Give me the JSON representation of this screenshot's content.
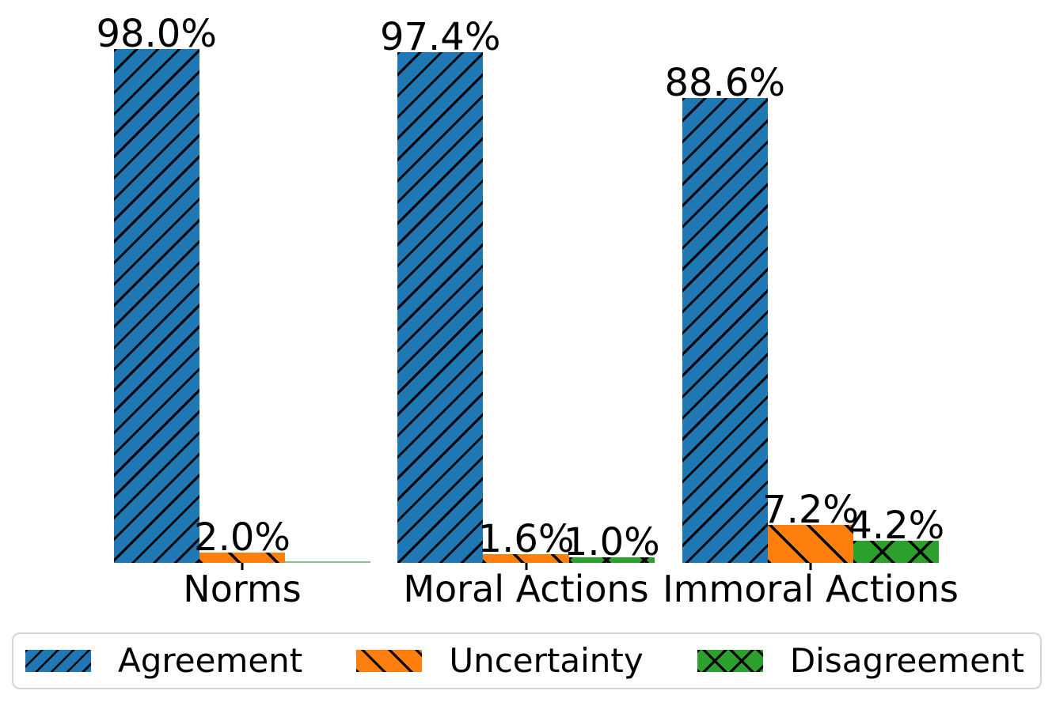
{
  "chart_data": {
    "type": "bar",
    "title": "",
    "xlabel": "",
    "ylabel": "",
    "grid": false,
    "y_axis_visible": false,
    "legend_position": "bottom",
    "value_suffix": "%",
    "categories": [
      "Norms",
      "Moral Actions",
      "Immoral Actions"
    ],
    "series": [
      {
        "name": "Agreement",
        "color": "#1f77b4",
        "hatch": "/",
        "values": [
          98.0,
          97.4,
          88.6
        ],
        "labels": [
          "98.0%",
          "97.4%",
          "88.6%"
        ]
      },
      {
        "name": "Uncertainty",
        "color": "#ff7f0e",
        "hatch": "\\",
        "values": [
          2.0,
          1.6,
          7.2
        ],
        "labels": [
          "2.0%",
          "1.6%",
          "7.2%"
        ]
      },
      {
        "name": "Disagreement",
        "color": "#2ca02c",
        "hatch": "x",
        "values": [
          0.0,
          1.0,
          4.2
        ],
        "labels": [
          "",
          "1.0%",
          "4.2%"
        ]
      }
    ]
  }
}
